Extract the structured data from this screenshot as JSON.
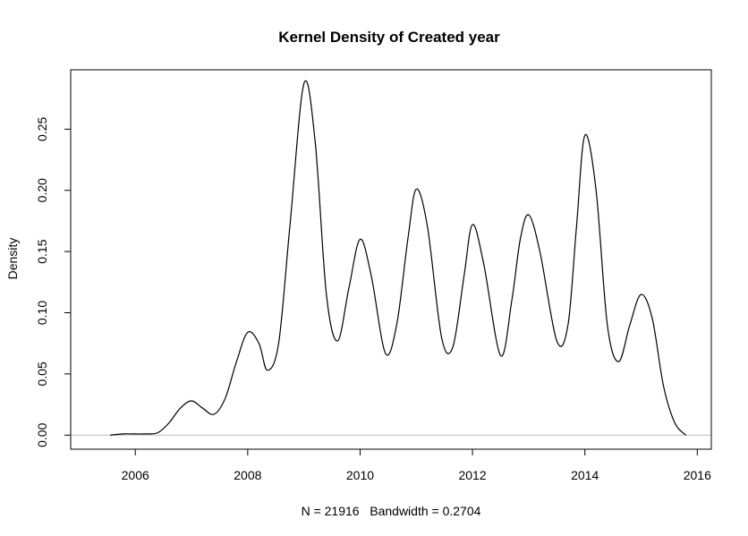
{
  "chart_data": {
    "type": "line",
    "title": "Kernel Density of Created year",
    "xlabel": "N = 21916   Bandwidth = 0.2704",
    "ylabel": "Density",
    "xlim": [
      2004.85,
      2016.25
    ],
    "ylim": [
      -0.0115,
      0.2985
    ],
    "x_ticks": [
      2006,
      2008,
      2010,
      2012,
      2014,
      2016
    ],
    "y_ticks": [
      0.0,
      0.05,
      0.1,
      0.15,
      0.2,
      0.25
    ],
    "x_tick_labels": [
      "2006",
      "2008",
      "2010",
      "2012",
      "2014",
      "2016"
    ],
    "y_tick_labels": [
      "0.00",
      "0.05",
      "0.10",
      "0.15",
      "0.20",
      "0.25"
    ],
    "baseline": 0,
    "baseline_color": "#bebebe",
    "line_color": "#000000",
    "series": [
      {
        "x": [
          2005.55,
          2005.8,
          2006.0,
          2006.2,
          2006.4,
          2006.6,
          2006.8,
          2007.0,
          2007.2,
          2007.4,
          2007.6,
          2007.8,
          2008.0,
          2008.2,
          2008.35,
          2008.55,
          2008.75,
          2009.0,
          2009.2,
          2009.4,
          2009.6,
          2009.8,
          2010.0,
          2010.2,
          2010.45,
          2010.65,
          2010.85,
          2011.0,
          2011.2,
          2011.45,
          2011.65,
          2011.85,
          2012.0,
          2012.2,
          2012.5,
          2012.7,
          2012.85,
          2013.0,
          2013.2,
          2013.5,
          2013.7,
          2013.85,
          2014.0,
          2014.2,
          2014.4,
          2014.6,
          2014.8,
          2015.0,
          2015.2,
          2015.4,
          2015.6,
          2015.8
        ],
        "y": [
          0.0,
          0.001,
          0.001,
          0.001,
          0.002,
          0.01,
          0.022,
          0.028,
          0.022,
          0.017,
          0.03,
          0.06,
          0.084,
          0.075,
          0.053,
          0.075,
          0.17,
          0.287,
          0.24,
          0.115,
          0.077,
          0.12,
          0.16,
          0.13,
          0.067,
          0.09,
          0.16,
          0.201,
          0.17,
          0.08,
          0.072,
          0.13,
          0.172,
          0.14,
          0.065,
          0.11,
          0.16,
          0.18,
          0.15,
          0.077,
          0.09,
          0.17,
          0.245,
          0.2,
          0.09,
          0.06,
          0.09,
          0.115,
          0.095,
          0.04,
          0.01,
          0.0
        ]
      }
    ]
  }
}
